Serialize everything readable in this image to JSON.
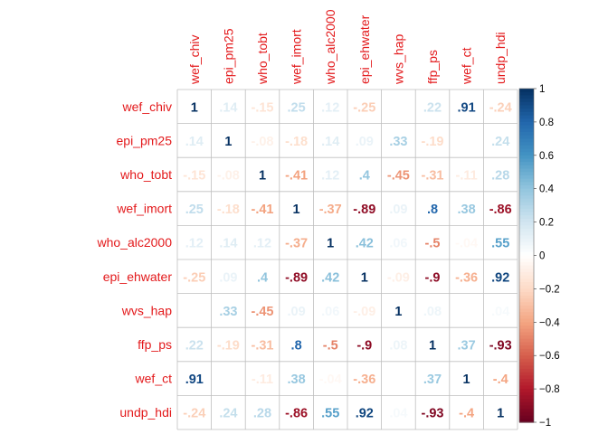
{
  "chart_data": {
    "type": "heatmap",
    "title": "",
    "xlabel": "",
    "ylabel": "",
    "variables": [
      "wef_chiv",
      "epi_pm25",
      "who_tobt",
      "wef_imort",
      "who_alc2000",
      "epi_ehwater",
      "wvs_hap",
      "ffp_ps",
      "wef_ct",
      "undp_hdi"
    ],
    "matrix": [
      [
        1,
        0.14,
        -0.15,
        0.25,
        0.12,
        -0.25,
        null,
        0.22,
        0.91,
        -0.24
      ],
      [
        0.14,
        1,
        -0.08,
        -0.18,
        0.14,
        0.09,
        0.33,
        -0.19,
        null,
        0.24
      ],
      [
        -0.15,
        -0.08,
        1,
        -0.41,
        0.12,
        0.4,
        -0.45,
        -0.31,
        -0.11,
        0.28
      ],
      [
        0.25,
        -0.18,
        -0.41,
        1,
        -0.37,
        -0.89,
        0.09,
        0.8,
        0.38,
        -0.86
      ],
      [
        0.12,
        0.14,
        0.12,
        -0.37,
        1,
        0.42,
        0.06,
        -0.5,
        -0.04,
        0.55
      ],
      [
        -0.25,
        0.09,
        0.4,
        -0.89,
        0.42,
        1,
        -0.09,
        -0.9,
        -0.36,
        0.92
      ],
      [
        null,
        0.33,
        -0.45,
        0.09,
        0.06,
        -0.09,
        1,
        0.08,
        null,
        0.04
      ],
      [
        0.22,
        -0.19,
        -0.31,
        0.8,
        -0.5,
        -0.9,
        0.08,
        1,
        0.37,
        -0.93
      ],
      [
        0.91,
        null,
        -0.11,
        0.38,
        -0.04,
        -0.36,
        null,
        0.37,
        1,
        -0.4
      ],
      [
        -0.24,
        0.24,
        0.28,
        -0.86,
        0.55,
        0.92,
        0.04,
        -0.93,
        -0.4,
        1
      ]
    ],
    "colorbar": {
      "range": [
        -1,
        1
      ],
      "tick_labels": [
        "1",
        "0.8",
        "0.6",
        "0.4",
        "0.2",
        "0",
        "−0.2",
        "−0.4",
        "−0.6",
        "−0.8",
        "−1"
      ],
      "palette": [
        "#67001F",
        "#B2182B",
        "#D6604D",
        "#F4A582",
        "#FDDBC7",
        "#FFFFFF",
        "#D1E5F0",
        "#92C5DE",
        "#4393C3",
        "#2166AC",
        "#053061"
      ]
    },
    "label_color": "#E31A1C",
    "grid": true,
    "legend_position": "right"
  }
}
